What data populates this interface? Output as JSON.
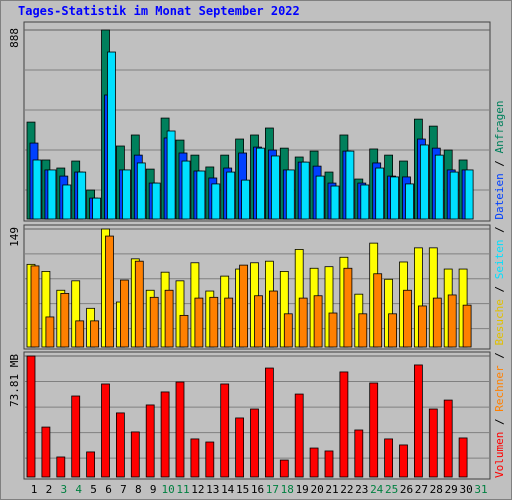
{
  "chart_data": {
    "type": "bar",
    "title": "Tages-Statistik im Monat September 2022",
    "categories": [
      "1",
      "2",
      "3",
      "4",
      "5",
      "6",
      "7",
      "8",
      "9",
      "10",
      "11",
      "12",
      "13",
      "14",
      "15",
      "16",
      "17",
      "18",
      "19",
      "20",
      "21",
      "22",
      "23",
      "24",
      "25",
      "26",
      "27",
      "28",
      "29",
      "30",
      "31"
    ],
    "category_colors": [
      "#000000",
      "#000000",
      "#008040",
      "#008040",
      "#000000",
      "#000000",
      "#000000",
      "#000000",
      "#000000",
      "#008040",
      "#008040",
      "#000000",
      "#000000",
      "#000000",
      "#000000",
      "#000000",
      "#008040",
      "#008040",
      "#000000",
      "#000000",
      "#000000",
      "#000000",
      "#000000",
      "#008040",
      "#008040",
      "#000000",
      "#000000",
      "#000000",
      "#000000",
      "#000000",
      "#008040"
    ],
    "legend_separator": " / ",
    "panels": [
      {
        "ylim": [
          0,
          888
        ],
        "yticks": [
          888
        ],
        "series": [
          {
            "name": "Anfragen",
            "color": "#00805c",
            "values": [
              453,
              274,
              236,
              269,
              132,
              888,
              340,
              392,
              231,
              472,
              368,
              297,
              241,
              297,
              373,
              392,
              425,
              330,
              288,
              316,
              217,
              392,
              184,
              326,
              297,
              269,
              467,
              434,
              321,
              274,
              null
            ]
          },
          {
            "name": "Dateien",
            "color": "#0040ff",
            "values": [
              354,
              227,
              198,
              217,
              94,
              581,
              227,
              297,
              165,
              378,
              307,
              222,
              189,
              236,
              307,
              335,
              321,
              227,
              264,
              245,
              165,
              316,
              165,
              260,
              198,
              194,
              373,
              330,
              227,
              227,
              null
            ]
          },
          {
            "name": "Seiten",
            "color": "#00e0ff",
            "values": [
              274,
              227,
              156,
              217,
              94,
              784,
              227,
              260,
              165,
              411,
              269,
              222,
              161,
              217,
              179,
              330,
              293,
              227,
              264,
              198,
              151,
              316,
              156,
              236,
              194,
              161,
              345,
              297,
              217,
              227,
              null
            ]
          }
        ]
      },
      {
        "ylim": [
          0,
          149
        ],
        "yticks": [
          149
        ],
        "series": [
          {
            "name": "Besuche",
            "color": "#ffff00",
            "values": [
              104,
              95,
              71,
              83,
              48,
              149,
              56,
              111,
              71,
              94,
              83,
              106,
              70,
              89,
              98,
              106,
              108,
              95,
              123,
              99,
              101,
              113,
              66,
              131,
              85,
              107,
              125,
              125,
              98,
              98,
              null
            ]
          },
          {
            "name": "Rechner",
            "color": "#ff8000",
            "values": [
              102,
              37,
              67,
              32,
              32,
              140,
              84,
              108,
              62,
              71,
              39,
              61,
              62,
              61,
              103,
              64,
              70,
              41,
              61,
              64,
              42,
              99,
              41,
              92,
              41,
              71,
              51,
              61,
              65,
              52,
              null
            ]
          }
        ]
      },
      {
        "ylim": [
          0,
          73.81
        ],
        "yticks": [
          {
            "value": 73.81,
            "label": "73.81 MB"
          }
        ],
        "series": [
          {
            "name": "Volumen",
            "color": "#ff0000",
            "values": [
              73.8,
              30.1,
              11.7,
              49.2,
              14.8,
              56.6,
              38.8,
              27.1,
              43.7,
              51.7,
              57.8,
              22.8,
              20.9,
              56.6,
              35.7,
              41.2,
              66.4,
              9.8,
              50.4,
              17.2,
              15.4,
              64.0,
              28.3,
              57.2,
              22.8,
              19.1,
              68.3,
              41.2,
              46.7,
              23.4,
              null
            ]
          }
        ]
      }
    ]
  }
}
